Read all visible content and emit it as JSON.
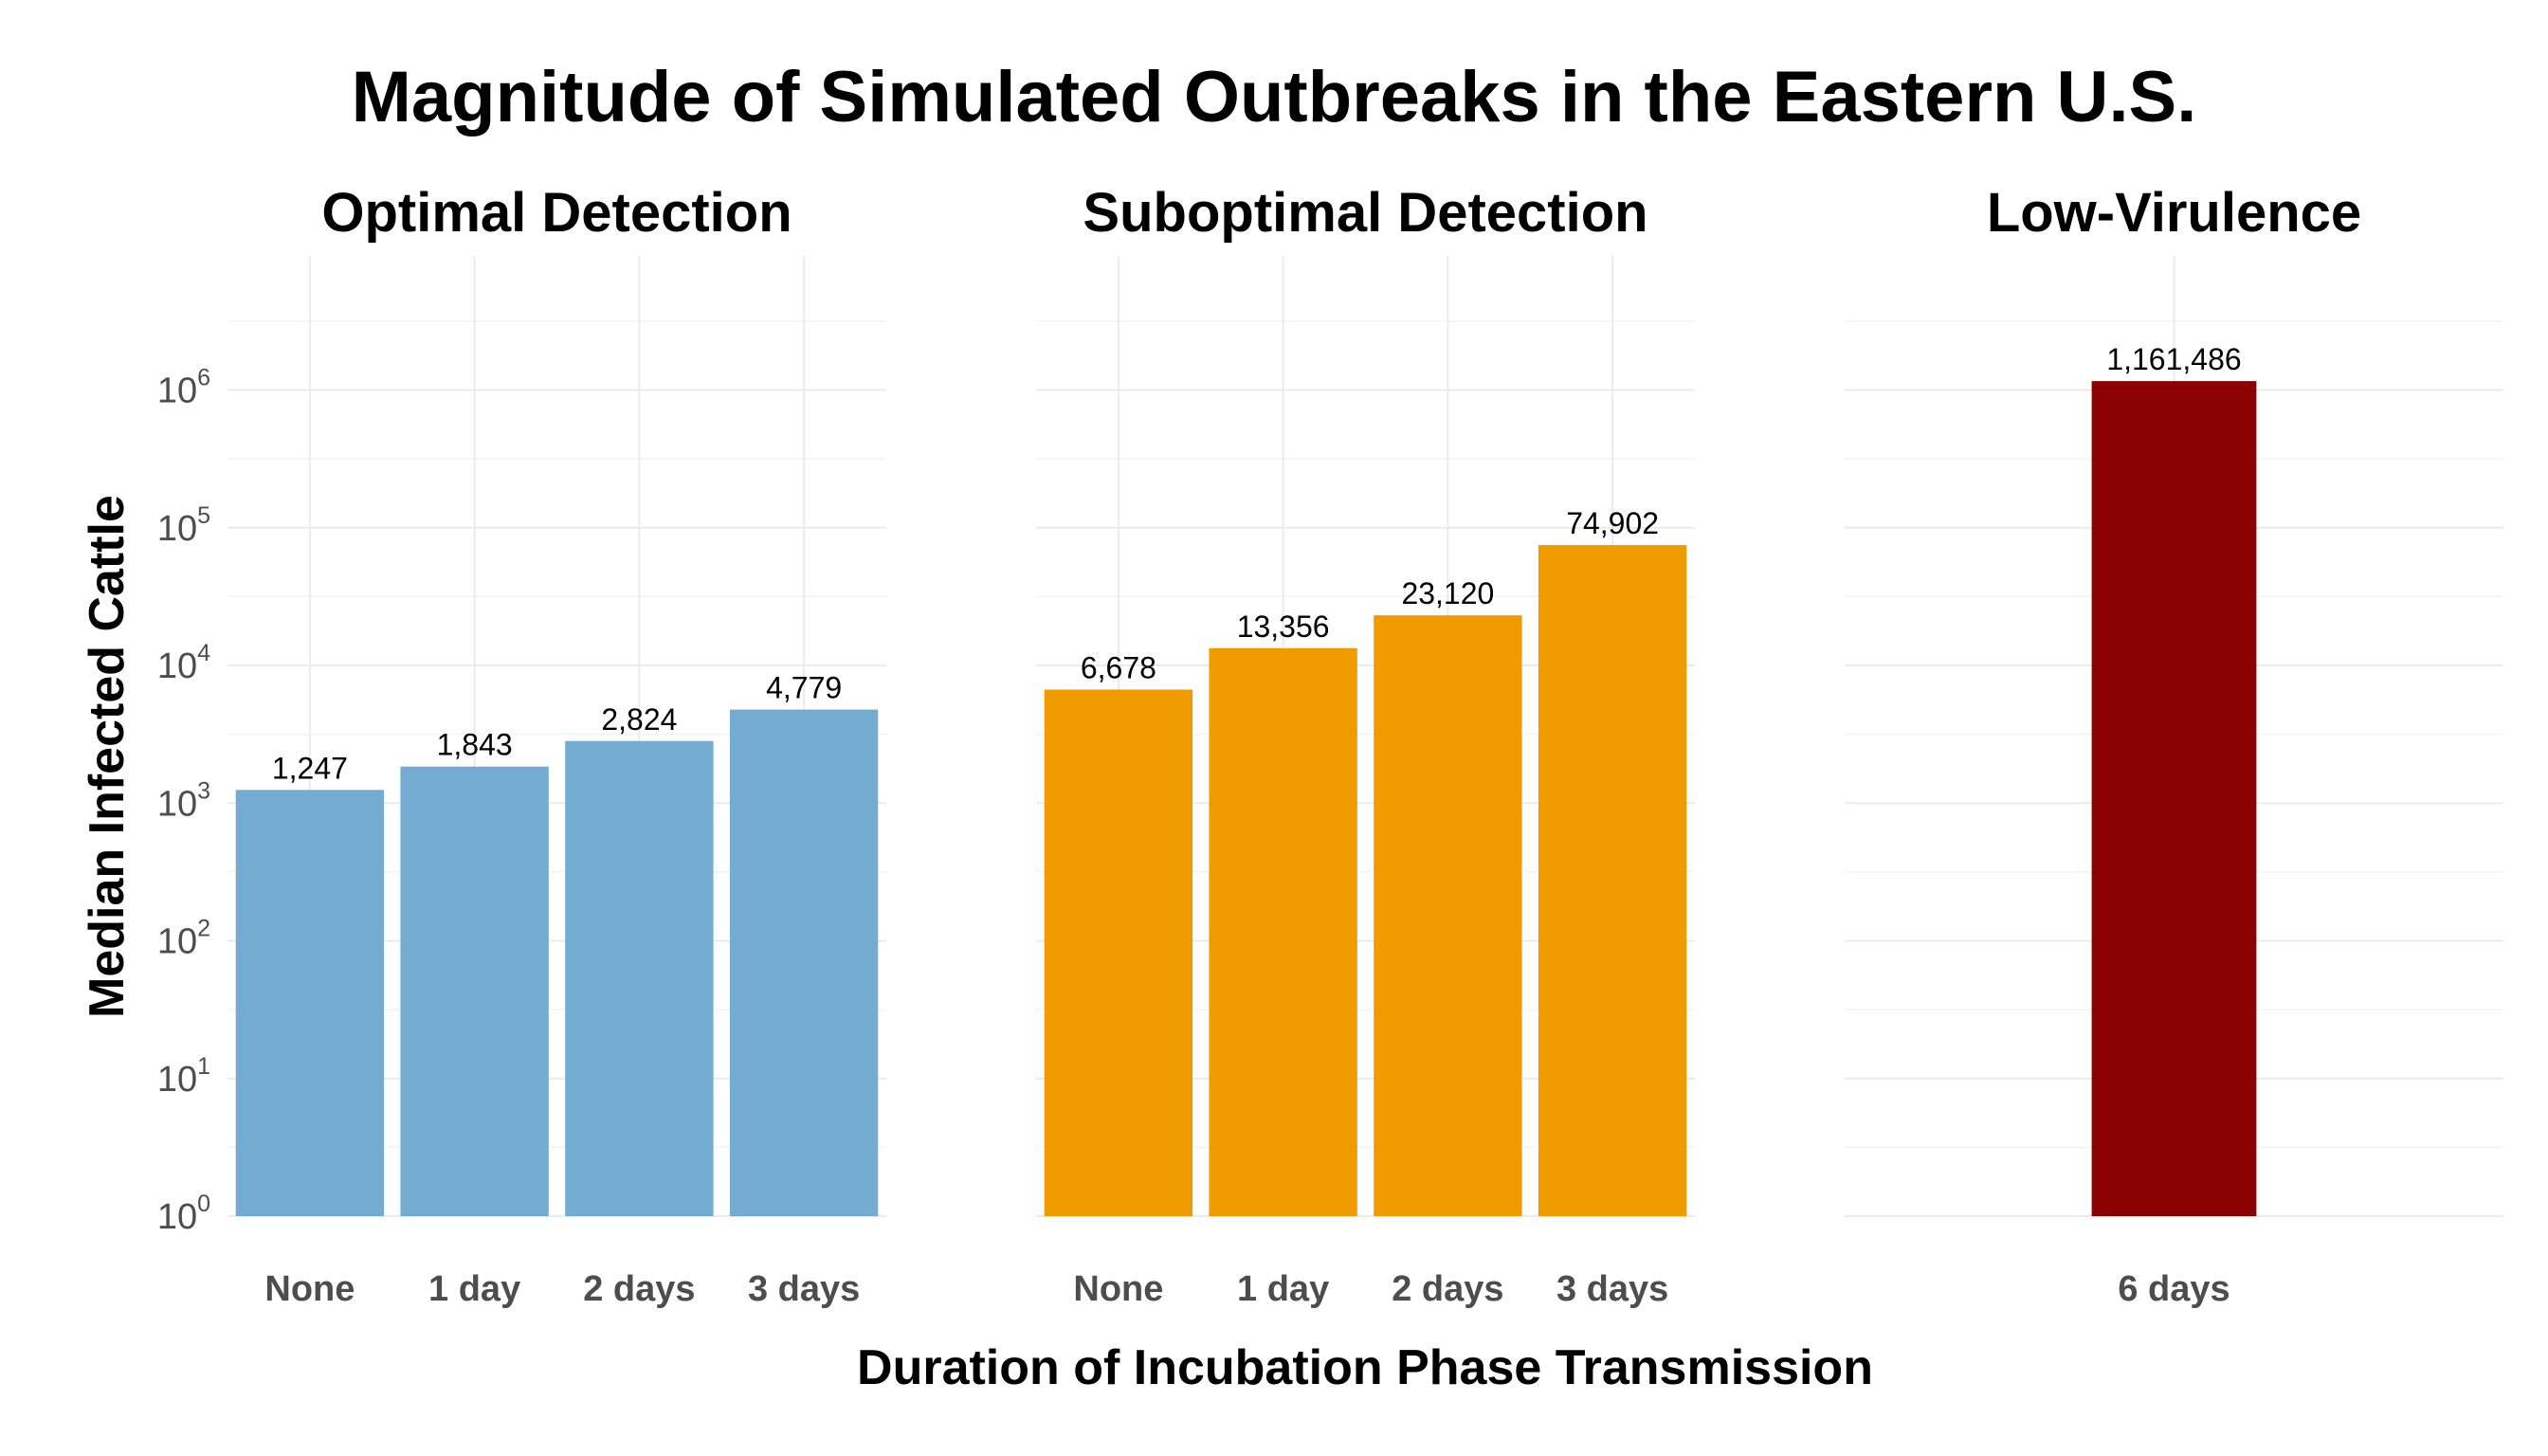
{
  "title": "Magnitude of Simulated Outbreaks in the Eastern U.S.",
  "xlabel": "Duration of Incubation Phase Transmission",
  "ylabel": "Median Infected Cattle",
  "chart_data": [
    {
      "type": "bar",
      "title": "Optimal Detection",
      "color": "#74acd1",
      "categories": [
        "None",
        "1 day",
        "2 days",
        "3 days"
      ],
      "values": [
        1247,
        1843,
        2824,
        4779
      ],
      "value_labels": [
        "1,247",
        "1,843",
        "2,824",
        "4,779"
      ],
      "yscale": "log",
      "ylim": [
        1,
        5000000
      ],
      "yticks": [
        1,
        10,
        100,
        1000,
        10000,
        100000,
        1000000
      ],
      "ytick_labels": [
        {
          "base": "10",
          "exp": "0"
        },
        {
          "base": "10",
          "exp": "1"
        },
        {
          "base": "10",
          "exp": "2"
        },
        {
          "base": "10",
          "exp": "3"
        },
        {
          "base": "10",
          "exp": "4"
        },
        {
          "base": "10",
          "exp": "5"
        },
        {
          "base": "10",
          "exp": "6"
        }
      ],
      "grid": true
    },
    {
      "type": "bar",
      "title": "Suboptimal Detection",
      "color": "#f09c00",
      "categories": [
        "None",
        "1 day",
        "2 days",
        "3 days"
      ],
      "values": [
        6678,
        13356,
        23120,
        74902
      ],
      "value_labels": [
        "6,678",
        "13,356",
        "23,120",
        "74,902"
      ],
      "yscale": "log",
      "ylim": [
        1,
        5000000
      ],
      "grid": true
    },
    {
      "type": "bar",
      "title": "Low-Virulence",
      "color": "#8b0000",
      "categories": [
        "6 days"
      ],
      "values": [
        1161486
      ],
      "value_labels": [
        "1,161,486"
      ],
      "yscale": "log",
      "ylim": [
        1,
        5000000
      ],
      "grid": true
    }
  ]
}
